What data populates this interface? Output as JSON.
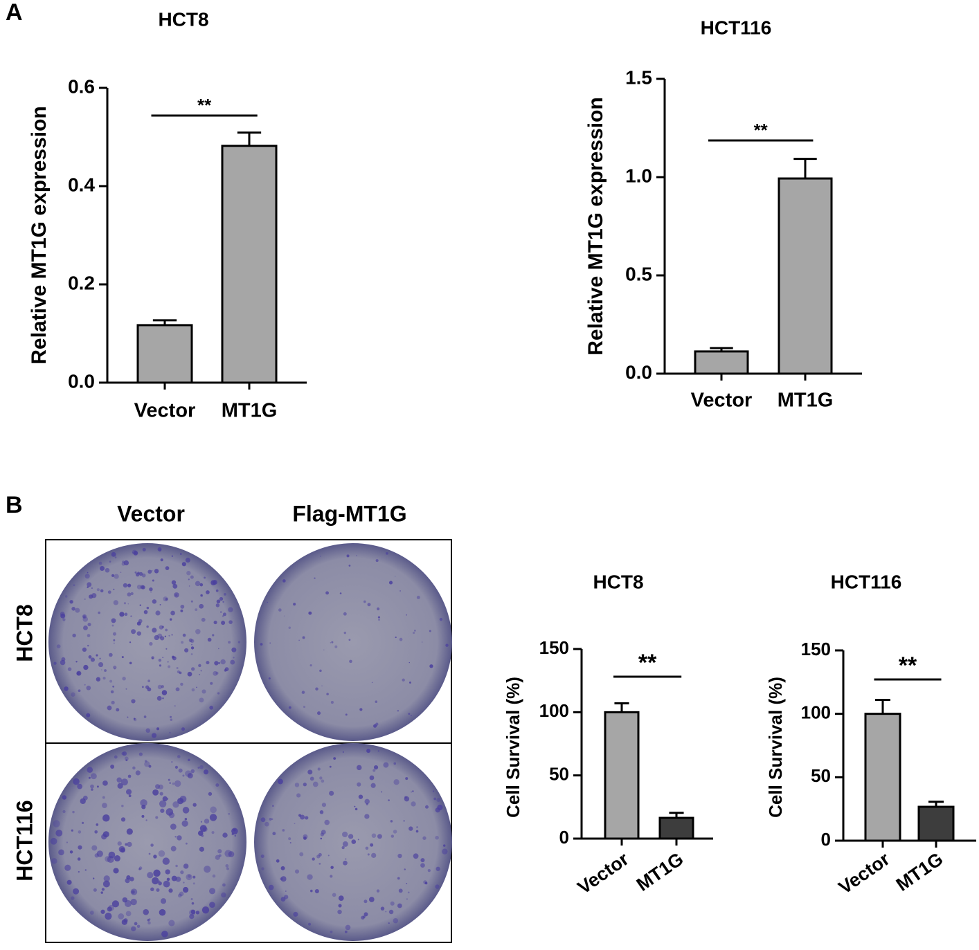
{
  "panel_labels": [
    "A",
    "B"
  ],
  "plates": {
    "columns": [
      "Vector",
      "Flag-MT1G"
    ],
    "rows": [
      "HCT8",
      "HCT116"
    ]
  },
  "chart_data": [
    {
      "type": "bar",
      "title": "HCT8",
      "ylabel": "Relative MT1G expression",
      "categories": [
        "Vector",
        "MT1G"
      ],
      "values": [
        0.117,
        0.482
      ],
      "errors": [
        0.01,
        0.027
      ],
      "colors": [
        "#a6a6a6",
        "#a6a6a6"
      ],
      "annotation": "**",
      "ylim": [
        0,
        0.6
      ],
      "yticks": [
        {
          "value": 0,
          "label": "0.0"
        },
        0.2,
        0.4,
        0.6
      ]
    },
    {
      "type": "bar",
      "title": "HCT116",
      "ylabel": "Relative MT1G expression",
      "categories": [
        "Vector",
        "MT1G"
      ],
      "values": [
        0.113,
        0.993
      ],
      "errors": [
        0.017,
        0.1
      ],
      "colors": [
        "#a6a6a6",
        "#a6a6a6"
      ],
      "annotation": "**",
      "ylim": [
        0,
        1.5
      ],
      "yticks": [
        {
          "value": 0,
          "label": "0.0"
        },
        0.5,
        {
          "value": 1,
          "label": "1.0"
        },
        1.5
      ]
    },
    {
      "type": "bar",
      "title": "HCT8",
      "ylabel": "Cell Survival (%)",
      "categories": [
        "Vector",
        "MT1G"
      ],
      "values": [
        100,
        16.4
      ],
      "errors": [
        7,
        4
      ],
      "colors": [
        "#a6a6a6",
        "#3d3d3d"
      ],
      "annotation": "**",
      "ylim": [
        0,
        150
      ],
      "yticks": [
        0,
        50,
        100,
        150
      ]
    },
    {
      "type": "bar",
      "title": "HCT116",
      "ylabel": "Cell Survival (%)",
      "categories": [
        "Vector",
        "MT1G"
      ],
      "values": [
        100,
        26.7
      ],
      "errors": [
        11,
        4
      ],
      "colors": [
        "#a6a6a6",
        "#3d3d3d"
      ],
      "annotation": "**",
      "ylim": [
        0,
        150
      ],
      "yticks": [
        0,
        50,
        100,
        150
      ]
    }
  ]
}
